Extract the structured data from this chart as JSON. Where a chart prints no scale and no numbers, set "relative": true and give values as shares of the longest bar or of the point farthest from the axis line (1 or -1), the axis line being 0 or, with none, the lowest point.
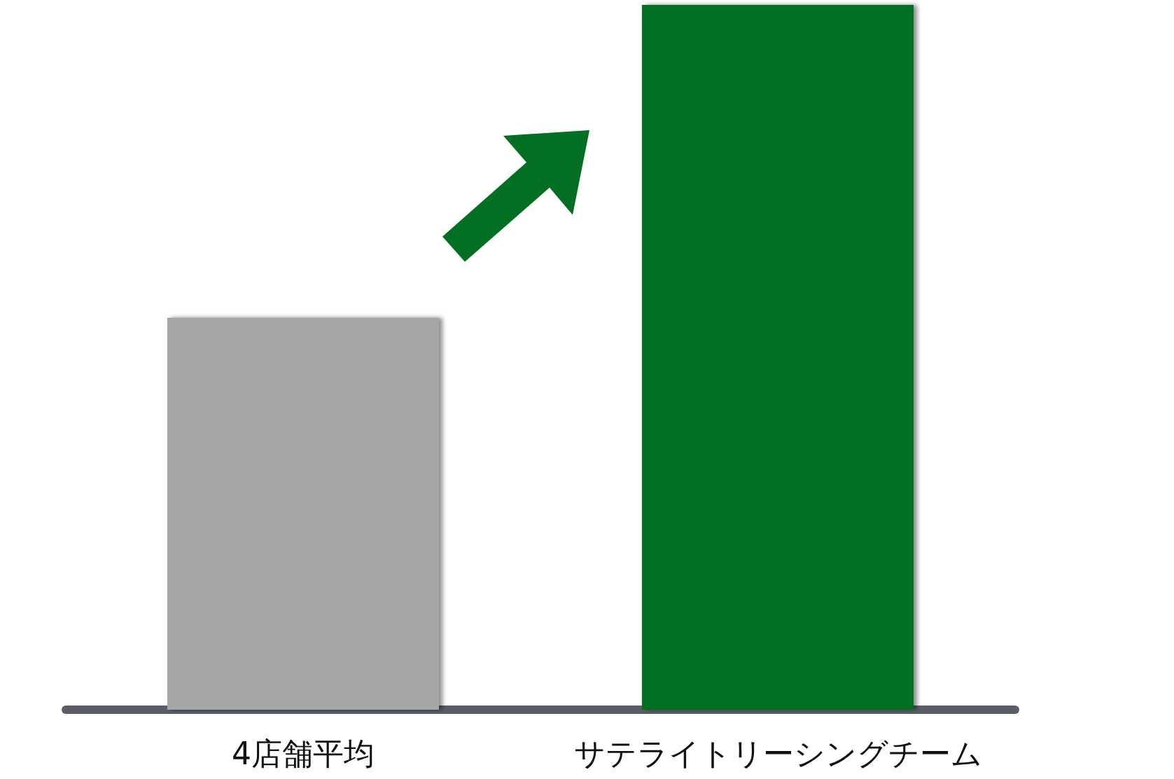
{
  "chart_data": {
    "type": "bar",
    "relative": true,
    "categories": [
      "4店舗平均",
      "サテライトリーシングチーム"
    ],
    "values": [
      0.556,
      1
    ],
    "colors": [
      "#a6a6a6",
      "#026f23"
    ]
  }
}
